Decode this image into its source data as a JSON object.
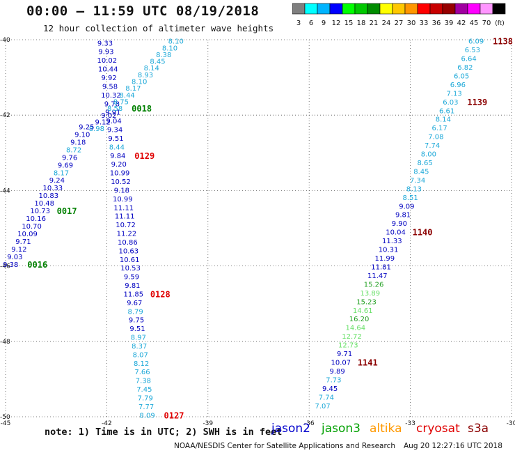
{
  "header": {
    "title": "00:00 – 11:59 UTC 08/19/2018",
    "subtitle": "12 hour collection of altimeter wave heights"
  },
  "legend": {
    "unit": "(ft)",
    "bins": [
      {
        "label": "3",
        "color": "#7f7f7f"
      },
      {
        "label": "6",
        "color": "#00ffff"
      },
      {
        "label": "9",
        "color": "#00b4ff"
      },
      {
        "label": "12",
        "color": "#0000ff"
      },
      {
        "label": "15",
        "color": "#00ff00"
      },
      {
        "label": "18",
        "color": "#00c800"
      },
      {
        "label": "21",
        "color": "#008c00"
      },
      {
        "label": "24",
        "color": "#ffff00"
      },
      {
        "label": "27",
        "color": "#ffc800"
      },
      {
        "label": "30",
        "color": "#ff9600"
      },
      {
        "label": "33",
        "color": "#ff0000"
      },
      {
        "label": "36",
        "color": "#c80000"
      },
      {
        "label": "39",
        "color": "#960000"
      },
      {
        "label": "42",
        "color": "#a000a0"
      },
      {
        "label": "45",
        "color": "#ff00ff"
      },
      {
        "label": "70",
        "color": "#ff96ff"
      },
      {
        "label": "",
        "color": "#000000"
      }
    ]
  },
  "map": {
    "lon_range": [
      -45,
      -30
    ],
    "lat_range": [
      -50,
      -40
    ],
    "lon_ticks": [
      -45,
      -42,
      -39,
      -36,
      -33,
      -30
    ],
    "lon_tick_labels": [
      "-45",
      "-42",
      "-39",
      "-36",
      "-33",
      "-30"
    ],
    "lat_ticks": [
      -40,
      -42,
      -44,
      -46,
      -48,
      -50
    ],
    "lat_tick_labels": [
      "-40",
      "-42",
      "-44",
      "-46",
      "-48",
      "-50"
    ],
    "grid": "dotted",
    "tracks": [
      {
        "name": "track_a",
        "start": {
          "lon": -42.05,
          "lat": -40.08
        },
        "end": {
          "lon": -40.8,
          "lat": -49.95
        },
        "values": [
          "9.33",
          "9.93",
          "10.02",
          "10.44",
          "9.92",
          "9.58",
          "10.32",
          "9.78",
          "9.91",
          "9.04",
          "9.34",
          "9.51",
          "8.44",
          "9.84",
          "9.20",
          "10.99",
          "10.52",
          "9.18",
          "10.99",
          "11.11",
          "11.11",
          "10.72",
          "11.22",
          "10.86",
          "10.63",
          "10.61",
          "10.53",
          "9.59",
          "9.81",
          "11.85",
          "9.67",
          "8.79",
          "9.75",
          "9.51",
          "8.97",
          "8.37",
          "8.07",
          "8.12",
          "7.66",
          "7.38",
          "7.45",
          "7.79",
          "7.77",
          "8.09"
        ],
        "pass_labels": [
          {
            "text": "0129",
            "after": 13,
            "color": "#e00000"
          },
          {
            "text": "0128",
            "after": 29,
            "color": "#e00000"
          },
          {
            "text": "0127",
            "after": 43,
            "color": "#e00000"
          }
        ]
      },
      {
        "name": "track_b",
        "start": {
          "lon": -39.95,
          "lat": -40.03
        },
        "end": {
          "lon": -42.3,
          "lat": -42.35
        },
        "values": [
          "8.10",
          "8.10",
          "8.38",
          "8.45",
          "8.14",
          "8.93",
          "8.10",
          "8.17",
          "8.44",
          "8.75",
          "8.58",
          "9.02",
          "9.12",
          "8.98"
        ],
        "pass_labels": [
          {
            "text": "0018",
            "after": 10,
            "color": "#008000"
          }
        ]
      },
      {
        "name": "track_c",
        "start": {
          "lon": -42.6,
          "lat": -42.3
        },
        "end": {
          "lon": -44.85,
          "lat": -45.95
        },
        "values": [
          "9.25",
          "9.10",
          "9.18",
          "8.72",
          "9.76",
          "9.69",
          "8.17",
          "9.24",
          "10.33",
          "10.83",
          "10.48",
          "10.73",
          "10.16",
          "10.70",
          "10.09",
          "9.71",
          "9.12",
          "9.03",
          "9.38"
        ],
        "pass_labels": [
          {
            "text": "0017",
            "after": 11,
            "color": "#008000"
          },
          {
            "text": "0016",
            "after": 18,
            "color": "#008000"
          }
        ]
      },
      {
        "name": "track_d",
        "start": {
          "lon": -31.05,
          "lat": -40.03
        },
        "end": {
          "lon": -35.6,
          "lat": -49.7
        },
        "values": [
          "6.09",
          "6.53",
          "6.64",
          "6.82",
          "6.05",
          "6.96",
          "7.13",
          "6.03",
          "6.61",
          "8.14",
          "6.17",
          "7.08",
          "7.74",
          "8.00",
          "8.65",
          "8.45",
          "7.34",
          "8.13",
          "8.51",
          "9.09",
          "9.81",
          "9.90",
          "10.04",
          "11.33",
          "10.31",
          "11.99",
          "11.81",
          "11.47",
          "15.26",
          "13.89",
          "15.23",
          "14.61",
          "16.20",
          "14.64",
          "12.72",
          "12.73",
          "9.71",
          "10.07",
          "9.89",
          "7.73",
          "9.45",
          "7.74",
          "7.07"
        ],
        "pass_labels": [
          {
            "text": "1138",
            "after": 0,
            "color": "#8b0000"
          },
          {
            "text": "1139",
            "after": 7,
            "color": "#8b0000"
          },
          {
            "text": "1140",
            "after": 22,
            "color": "#8b0000"
          },
          {
            "text": "1141",
            "after": 37,
            "color": "#8b0000"
          }
        ]
      }
    ]
  },
  "footer": {
    "note": "note: 1) Time is in UTC; 2) SWH is in feet",
    "satellites": [
      {
        "name": "jason2",
        "color": "#0000cc"
      },
      {
        "name": "jason3",
        "color": "#00a000"
      },
      {
        "name": "altika",
        "color": "#ff9900"
      },
      {
        "name": "cryosat",
        "color": "#e00000"
      },
      {
        "name": "s3a",
        "color": "#8b0000"
      }
    ],
    "credit": "NOAA/NESDIS Center for Satellite Applications and Research",
    "timestamp": "Aug 20 12:27:16 UTC 2018"
  }
}
